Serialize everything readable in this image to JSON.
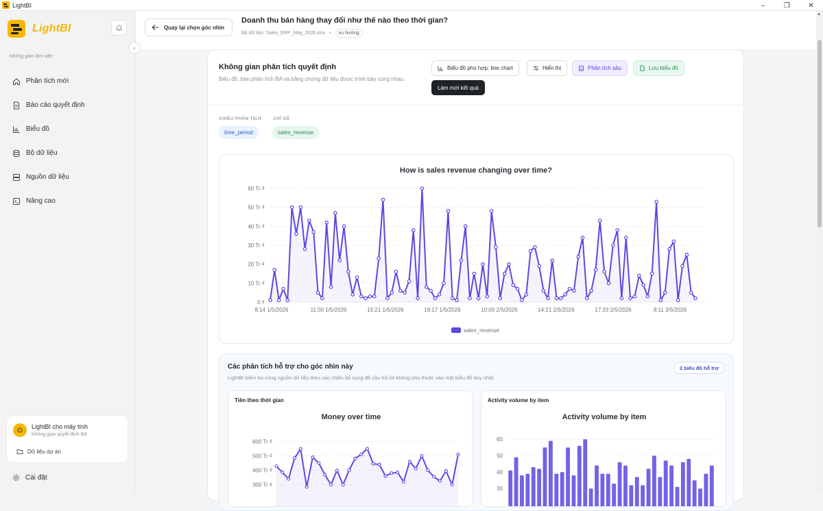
{
  "window": {
    "title": "LightBI",
    "controls": [
      "–",
      "❐",
      "✕"
    ]
  },
  "sidebar": {
    "logo_text": "LightBI",
    "workspace_label": "Không gian làm việc",
    "items": [
      {
        "label": "Phân tích mới",
        "icon": "home-icon"
      },
      {
        "label": "Báo cáo quyết định",
        "icon": "document-icon"
      },
      {
        "label": "Biểu đồ",
        "icon": "bar-chart-icon"
      },
      {
        "label": "Bộ dữ liệu",
        "icon": "database-icon"
      },
      {
        "label": "Nguồn dữ liệu",
        "icon": "server-icon"
      },
      {
        "label": "Nâng cao",
        "icon": "terminal-icon"
      }
    ],
    "workspace_card": {
      "name": "LightBI cho máy tính",
      "subtitle": "Không gian quyết định BA",
      "data_link": "Dữ liệu dự án"
    },
    "settings_label": "Cài đặt"
  },
  "topbar": {
    "back_label": "Quay lại chọn góc nhìn",
    "question": "Doanh thu bán hàng thay đổi như thế nào theo thời gian?",
    "dataset": "Bộ dữ liệu: Sales_ERP_May_2026.xlsx",
    "tag": "xu hướng"
  },
  "panel": {
    "title": "Không gian phân tích quyết định",
    "subtitle": "Biểu đồ, bản phân tích BA và bằng chứng dữ liệu được trình bày cùng nhau.",
    "buttons": {
      "chart_fit": "Biểu đồ phù hợp: line chart",
      "display": "Hiển thị",
      "deep_analysis": "Phân tích sâu",
      "save_chart": "Lưu biểu đồ"
    },
    "tooltip": "Làm mới kết quả",
    "dimension_label": "CHIỀU PHÂN TÍCH",
    "metric_label": "CHỈ SỐ",
    "dimension": "time_period",
    "metric": "sales_revenue"
  },
  "support": {
    "title": "Các phân tích hỗ trợ cho góc nhìn này",
    "subtitle": "LightBI kiểm tra cùng nguồn dữ liệu theo các chiều bổ sung để câu trả lời không phụ thuộc vào một biểu đồ duy nhất.",
    "badge": "2 biểu đồ hỗ trợ",
    "cards": [
      {
        "heading": "Tiền theo thời gian"
      },
      {
        "heading": "Activity volume by item"
      }
    ]
  },
  "chart_data": [
    {
      "type": "line",
      "title": "How is sales revenue changing over time?",
      "ylim": [
        0,
        60
      ],
      "y_ticks": [
        "0 ₫",
        "10 Tr ₫",
        "20 Tr ₫",
        "30 Tr ₫",
        "40 Tr ₫",
        "50 Tr ₫",
        "60 Tr ₫"
      ],
      "x_ticks": [
        "8:14 1/5/2026",
        "11:00 1/5/2026",
        "15:21 1/5/2026",
        "18:17 1/5/2026",
        "10:00 2/5/2026",
        "14:21 2/5/2026",
        "17:33 2/5/2026",
        "8:11 3/5/2026"
      ],
      "series": [
        {
          "name": "sales_revenue",
          "color": "#5a48e0",
          "values": [
            1,
            17,
            1,
            7,
            1,
            50,
            36,
            50,
            28,
            43,
            37,
            5,
            2,
            42,
            8,
            47,
            22,
            40,
            16,
            4,
            13,
            3,
            2,
            3,
            3,
            23,
            54,
            2,
            5,
            16,
            6,
            5,
            11,
            38,
            2,
            60,
            8,
            6,
            2,
            4,
            10,
            48,
            2,
            1,
            22,
            40,
            2,
            15,
            2,
            20,
            3,
            48,
            29,
            2,
            15,
            20,
            9,
            7,
            1,
            4,
            27,
            29,
            19,
            6,
            2,
            22,
            2,
            2,
            4,
            7,
            6,
            24,
            34,
            2,
            6,
            17,
            43,
            16,
            10,
            30,
            38,
            2,
            34,
            2,
            3,
            14,
            9,
            3,
            15,
            53,
            1,
            5,
            28,
            32,
            1,
            19,
            25,
            5,
            2
          ]
        }
      ],
      "grid": true,
      "legend": "bottom"
    },
    {
      "type": "line",
      "title": "Money over time",
      "y_ticks": [
        "300 Tr ₫",
        "400 Tr ₫",
        "500 Tr ₫",
        "600 Tr ₫"
      ],
      "ylim": [
        250,
        650
      ],
      "series": [
        {
          "color": "#5a48e0",
          "values": [
            428,
            385,
            340,
            485,
            548,
            285,
            490,
            450,
            370,
            300,
            398,
            300,
            400,
            482,
            510,
            550,
            445,
            440,
            360,
            380,
            385,
            320,
            460,
            412,
            500,
            400,
            355,
            325,
            395,
            300,
            510
          ]
        }
      ]
    },
    {
      "type": "bar",
      "title": "Activity volume by item",
      "y_ticks": [
        "30",
        "40",
        "50",
        "60"
      ],
      "ylim": [
        28,
        63
      ],
      "series": [
        {
          "color": "#5a48e0",
          "values": [
            41,
            49,
            38,
            39,
            43,
            42,
            55,
            59,
            39,
            40,
            55,
            38,
            56,
            60,
            30,
            44,
            39,
            39,
            33,
            46,
            44,
            32,
            37,
            32,
            42,
            50,
            37,
            47,
            44,
            31,
            46,
            48,
            35,
            30,
            39,
            44
          ]
        }
      ]
    }
  ]
}
